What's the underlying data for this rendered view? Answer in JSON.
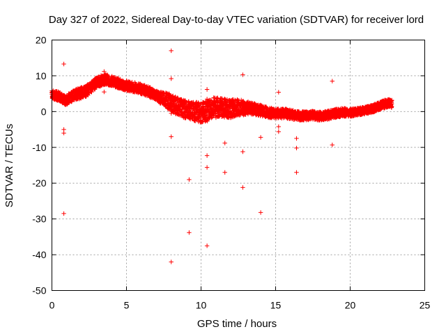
{
  "chart_data": {
    "type": "scatter",
    "title": "Day 327 of 2022, Sidereal Day-to-day VTEC variation (SDTVAR) for receiver lord",
    "xlabel": "GPS time / hours",
    "ylabel": "SDTVAR / TECUs",
    "xlim": [
      0,
      25
    ],
    "ylim": [
      -50,
      20
    ],
    "xticks": [
      0,
      5,
      10,
      15,
      20,
      25
    ],
    "yticks": [
      -50,
      -40,
      -30,
      -20,
      -10,
      0,
      10,
      20
    ],
    "grid": true,
    "marker": "+",
    "point_color": "#ff0000",
    "series": [
      {
        "name": "SDTVAR",
        "trend": [
          [
            0.0,
            4.8
          ],
          [
            0.5,
            4.2
          ],
          [
            0.9,
            3.2
          ],
          [
            1.2,
            3.8
          ],
          [
            1.6,
            4.8
          ],
          [
            2.0,
            5.2
          ],
          [
            2.4,
            6.0
          ],
          [
            2.8,
            7.5
          ],
          [
            3.2,
            8.5
          ],
          [
            3.6,
            9.0
          ],
          [
            4.0,
            8.5
          ],
          [
            4.5,
            7.8
          ],
          [
            5.0,
            7.2
          ],
          [
            5.5,
            6.8
          ],
          [
            6.0,
            6.3
          ],
          [
            6.5,
            5.5
          ],
          [
            7.0,
            4.5
          ],
          [
            7.5,
            3.5
          ],
          [
            8.0,
            2.5
          ],
          [
            8.4,
            1.5
          ],
          [
            8.8,
            0.8
          ],
          [
            9.2,
            0.4
          ],
          [
            9.6,
            0.0
          ],
          [
            10.0,
            -0.2
          ],
          [
            10.4,
            0.2
          ],
          [
            10.8,
            1.0
          ],
          [
            11.2,
            1.2
          ],
          [
            11.6,
            1.0
          ],
          [
            12.0,
            0.8
          ],
          [
            12.5,
            1.2
          ],
          [
            13.0,
            1.0
          ],
          [
            13.5,
            0.8
          ],
          [
            14.0,
            0.3
          ],
          [
            14.5,
            -0.3
          ],
          [
            15.0,
            -0.6
          ],
          [
            15.5,
            -0.5
          ],
          [
            16.0,
            -0.8
          ],
          [
            16.5,
            -1.2
          ],
          [
            17.0,
            -1.2
          ],
          [
            17.5,
            -1.0
          ],
          [
            18.0,
            -1.3
          ],
          [
            18.5,
            -1.0
          ],
          [
            19.0,
            -0.5
          ],
          [
            19.5,
            -0.2
          ],
          [
            20.0,
            -0.3
          ],
          [
            20.5,
            0.0
          ],
          [
            21.0,
            0.3
          ],
          [
            21.5,
            0.8
          ],
          [
            22.0,
            1.6
          ],
          [
            22.5,
            2.4
          ],
          [
            22.8,
            2.0
          ]
        ],
        "spread": [
          [
            0.0,
            1.2
          ],
          [
            2.0,
            1.6
          ],
          [
            4.0,
            1.4
          ],
          [
            7.0,
            1.4
          ],
          [
            8.0,
            2.4
          ],
          [
            9.5,
            2.6
          ],
          [
            10.5,
            3.0
          ],
          [
            12.0,
            2.6
          ],
          [
            13.5,
            1.6
          ],
          [
            15.0,
            1.4
          ],
          [
            17.0,
            1.2
          ],
          [
            19.0,
            1.2
          ],
          [
            21.0,
            1.0
          ],
          [
            22.8,
            1.2
          ]
        ],
        "outliers": [
          [
            0.8,
            13.3
          ],
          [
            0.8,
            -5.0
          ],
          [
            0.8,
            -6.0
          ],
          [
            0.8,
            -28.5
          ],
          [
            3.5,
            11.2
          ],
          [
            3.5,
            5.5
          ],
          [
            8.0,
            17.0
          ],
          [
            8.0,
            9.2
          ],
          [
            8.0,
            -0.5
          ],
          [
            8.0,
            -7.0
          ],
          [
            8.0,
            -42.0
          ],
          [
            9.2,
            -19.0
          ],
          [
            9.2,
            -33.8
          ],
          [
            10.4,
            6.2
          ],
          [
            10.4,
            3.5
          ],
          [
            10.4,
            -12.3
          ],
          [
            10.4,
            -15.6
          ],
          [
            10.4,
            -37.5
          ],
          [
            11.6,
            -8.8
          ],
          [
            11.6,
            -17.0
          ],
          [
            12.8,
            10.3
          ],
          [
            12.8,
            -11.2
          ],
          [
            12.8,
            -21.2
          ],
          [
            14.0,
            1.8
          ],
          [
            14.0,
            -7.2
          ],
          [
            14.0,
            -28.2
          ],
          [
            15.2,
            5.4
          ],
          [
            15.2,
            -4.2
          ],
          [
            15.2,
            -5.6
          ],
          [
            16.4,
            -7.5
          ],
          [
            16.4,
            -10.2
          ],
          [
            16.4,
            -17.0
          ],
          [
            18.8,
            8.5
          ],
          [
            18.8,
            -9.3
          ]
        ]
      }
    ]
  }
}
